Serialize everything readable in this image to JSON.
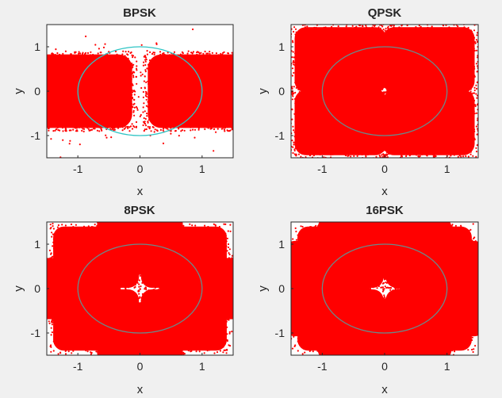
{
  "colors": {
    "figure_bg": "#f0f0f0",
    "axes_bg": "#ffffff",
    "points": "#ff0000",
    "circle": "#20b2aa",
    "axis_line": "#262626"
  },
  "chart_data": [
    {
      "type": "scatter",
      "title": "BPSK",
      "xlabel": "x",
      "ylabel": "y",
      "xlim": [
        -1.5,
        1.5
      ],
      "ylim": [
        -1.5,
        1.5
      ],
      "xticks": [
        -1,
        0,
        1
      ],
      "yticks": [
        -1,
        0,
        1
      ],
      "xtick_labels": [
        "-1",
        "0",
        "1"
      ],
      "ytick_labels": [
        "-1",
        "0",
        "1"
      ],
      "grid": false,
      "unit_circle_radius": 1,
      "series": [
        {
          "marker": "point",
          "cloud_centers": [
            [
              -1,
              0
            ],
            [
              1,
              0
            ]
          ],
          "cloud_halfwidth": [
            0.95,
            0.9
          ],
          "clipped_to_axes": true
        }
      ]
    },
    {
      "type": "scatter",
      "title": "QPSK",
      "xlabel": "x",
      "ylabel": "y",
      "xlim": [
        -1.5,
        1.5
      ],
      "ylim": [
        -1.5,
        1.5
      ],
      "xticks": [
        -1,
        0,
        1
      ],
      "yticks": [
        -1,
        0,
        1
      ],
      "xtick_labels": [
        "-1",
        "0",
        "1"
      ],
      "ytick_labels": [
        "-1",
        "0",
        "1"
      ],
      "grid": false,
      "unit_circle_radius": 1,
      "series": [
        {
          "marker": "point",
          "cloud_centers": [
            [
              0.707,
              0.707
            ],
            [
              -0.707,
              0.707
            ],
            [
              -0.707,
              -0.707
            ],
            [
              0.707,
              -0.707
            ]
          ],
          "cloud_halfwidth": [
            0.8,
            0.8
          ],
          "clipped_to_axes": true
        }
      ]
    },
    {
      "type": "scatter",
      "title": "8PSK",
      "xlabel": "x",
      "ylabel": "y",
      "xlim": [
        -1.5,
        1.5
      ],
      "ylim": [
        -1.5,
        1.5
      ],
      "xticks": [
        -1,
        0,
        1
      ],
      "yticks": [
        -1,
        0,
        1
      ],
      "xtick_labels": [
        "-1",
        "0",
        "1"
      ],
      "ytick_labels": [
        "-1",
        "0",
        "1"
      ],
      "grid": false,
      "unit_circle_radius": 1,
      "series": [
        {
          "marker": "point",
          "cloud_centers": [
            [
              1,
              0
            ],
            [
              0.707,
              0.707
            ],
            [
              0,
              1
            ],
            [
              -0.707,
              0.707
            ],
            [
              -1,
              0
            ],
            [
              -0.707,
              -0.707
            ],
            [
              0,
              -1
            ],
            [
              0.707,
              -0.707
            ]
          ],
          "cloud_halfwidth": [
            0.75,
            0.75
          ],
          "clipped_to_axes": true
        }
      ]
    },
    {
      "type": "scatter",
      "title": "16PSK",
      "xlabel": "x",
      "ylabel": "y",
      "xlim": [
        -1.5,
        1.5
      ],
      "ylim": [
        -1.5,
        1.5
      ],
      "xticks": [
        -1,
        0,
        1
      ],
      "yticks": [
        -1,
        0,
        1
      ],
      "xtick_labels": [
        "-1",
        "0",
        "1"
      ],
      "ytick_labels": [
        "-1",
        "0",
        "1"
      ],
      "grid": false,
      "unit_circle_radius": 1,
      "series": [
        {
          "marker": "point",
          "cloud_centers": "16 equally spaced points on the unit circle",
          "cloud_halfwidth": [
            0.75,
            0.75
          ],
          "clipped_to_axes": true
        }
      ]
    }
  ]
}
